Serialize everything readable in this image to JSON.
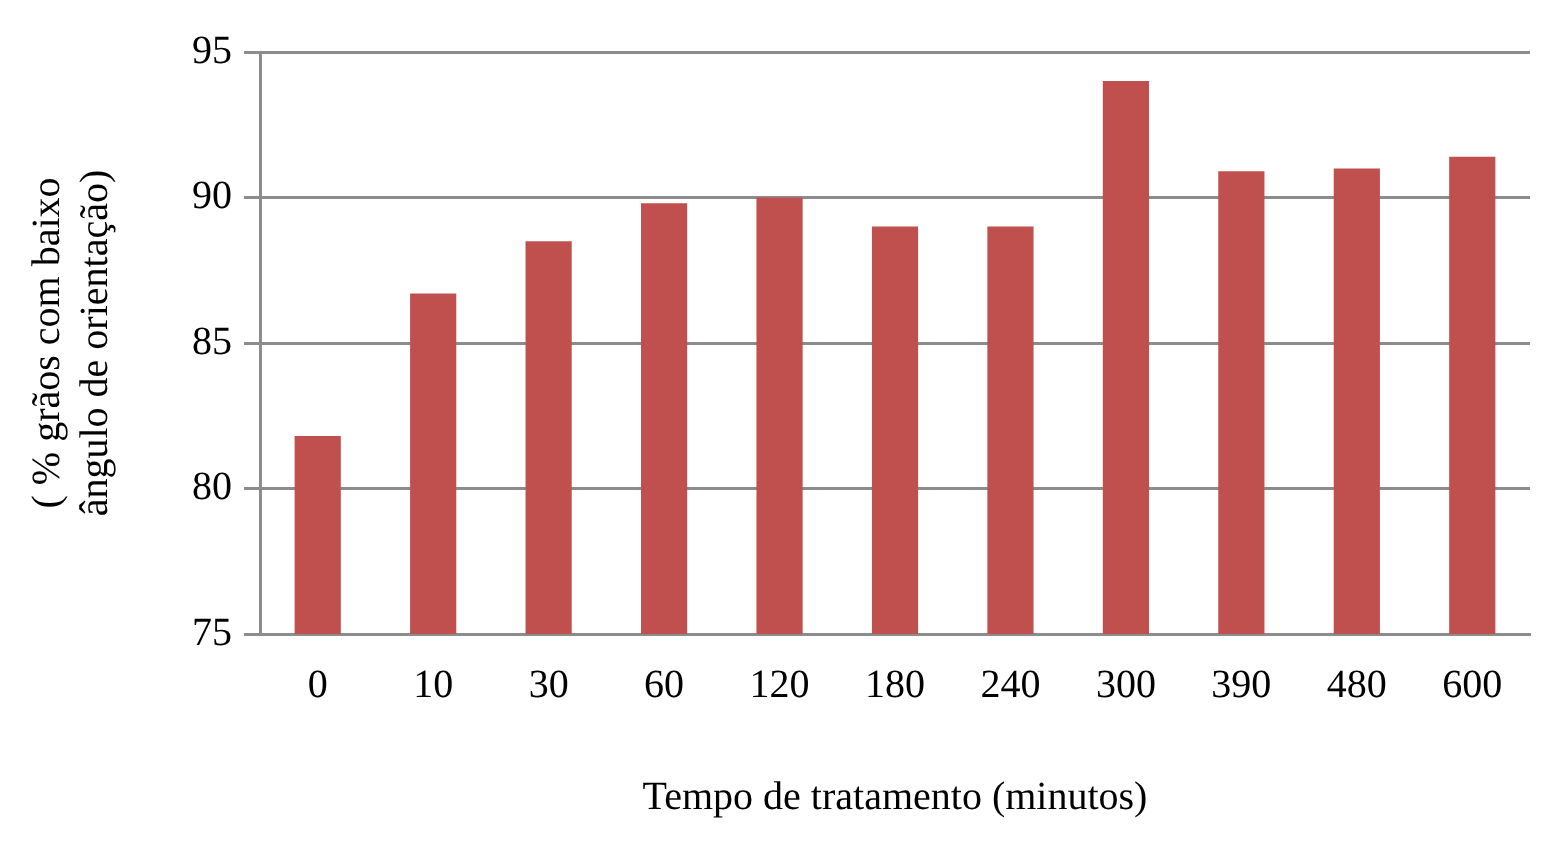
{
  "chart_data": {
    "type": "bar",
    "xlabel": "Tempo de tratamento (minutos)",
    "ylabel": "( % grãos com baixo ângulo de orientação)",
    "categories": [
      "0",
      "10",
      "30",
      "60",
      "120",
      "180",
      "240",
      "300",
      "390",
      "480",
      "600"
    ],
    "values": [
      81.8,
      86.7,
      88.5,
      89.8,
      90.0,
      89.0,
      89.0,
      94.0,
      90.9,
      91.0,
      91.4
    ],
    "color": "#c0504d",
    "ylim": [
      75,
      95
    ],
    "yticks": [
      75,
      80,
      85,
      90,
      95
    ],
    "grid": "y"
  }
}
